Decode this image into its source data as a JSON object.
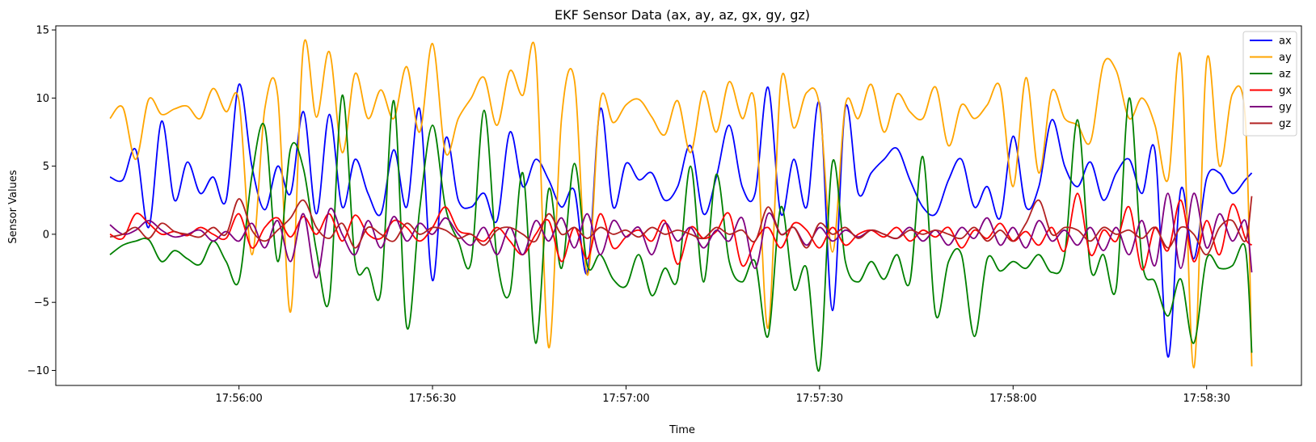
{
  "chart_data": {
    "type": "line",
    "title": "EKF Sensor Data (ax, ay, az, gx, gy, gz)",
    "xlabel": "Time",
    "ylabel": "Sensor Values",
    "x_ticks": [
      "17:56:00",
      "17:56:30",
      "17:57:00",
      "17:57:30",
      "17:58:00",
      "17:58:30"
    ],
    "x_tick_seconds": [
      0,
      30,
      60,
      90,
      120,
      150
    ],
    "xlim_seconds": [
      -28.4,
      164.7
    ],
    "ylim": [
      -11.1,
      15.3
    ],
    "y_ticks": [
      -10,
      -5,
      0,
      5,
      10,
      15
    ],
    "grid": false,
    "legend_position": "top-right",
    "x": [
      -20,
      -18,
      -16,
      -14,
      -12,
      -10,
      -8,
      -6,
      -4,
      -2,
      0,
      2,
      4,
      6,
      8,
      10,
      12,
      14,
      16,
      18,
      20,
      22,
      24,
      26,
      28,
      30,
      32,
      34,
      36,
      38,
      40,
      42,
      44,
      46,
      48,
      50,
      52,
      54,
      56,
      58,
      60,
      62,
      64,
      66,
      68,
      70,
      72,
      74,
      76,
      78,
      80,
      82,
      84,
      86,
      88,
      90,
      92,
      94,
      96,
      98,
      100,
      102,
      104,
      106,
      108,
      110,
      112,
      114,
      116,
      118,
      120,
      122,
      124,
      126,
      128,
      130,
      132,
      134,
      136,
      138,
      140,
      142,
      144,
      146,
      148,
      150,
      152,
      154,
      156,
      157
    ],
    "series": [
      {
        "name": "ax",
        "color": "#0000ff",
        "values": [
          4.2,
          4.0,
          6.2,
          0.5,
          8.3,
          2.5,
          5.3,
          3.0,
          4.2,
          2.5,
          11.0,
          5.0,
          1.8,
          5.0,
          3.0,
          9.0,
          1.5,
          8.8,
          2.0,
          5.5,
          3.0,
          1.5,
          6.2,
          2.0,
          9.2,
          -3.4,
          7.0,
          2.5,
          2.0,
          3.0,
          1.0,
          7.5,
          3.5,
          5.5,
          4.0,
          2.0,
          3.2,
          -2.8,
          9.2,
          2.0,
          5.2,
          4.0,
          4.5,
          2.5,
          3.5,
          6.5,
          1.5,
          4.2,
          8.0,
          3.5,
          3.0,
          10.8,
          1.5,
          5.5,
          2.0,
          9.6,
          -5.6,
          9.3,
          3.0,
          4.5,
          5.5,
          6.3,
          4.0,
          2.0,
          1.5,
          4.0,
          5.5,
          2.0,
          3.5,
          1.2,
          7.2,
          2.0,
          3.5,
          8.4,
          5.0,
          3.5,
          5.3,
          2.5,
          4.5,
          5.5,
          3.0,
          6.1,
          -9.0,
          3.3,
          -1.8,
          4.1,
          4.5,
          3.0,
          4.0,
          4.5
        ]
      },
      {
        "name": "ay",
        "color": "#ffa500",
        "values": [
          8.5,
          9.3,
          5.5,
          9.9,
          8.8,
          9.2,
          9.4,
          8.5,
          10.7,
          9.0,
          9.8,
          -1.5,
          9.2,
          10.2,
          -5.7,
          13.8,
          8.6,
          13.4,
          6.0,
          11.8,
          8.5,
          10.6,
          8.5,
          12.3,
          7.5,
          14.0,
          6.0,
          8.5,
          10.0,
          11.5,
          8.0,
          12.0,
          10.2,
          13.2,
          -8.3,
          8.5,
          11.3,
          -3.0,
          9.8,
          8.2,
          9.5,
          9.9,
          8.6,
          7.3,
          9.8,
          6.0,
          10.5,
          7.5,
          11.2,
          8.5,
          9.5,
          -6.9,
          11.2,
          7.8,
          10.4,
          9.4,
          -1.3,
          9.5,
          8.5,
          11.0,
          7.5,
          10.3,
          9.0,
          8.5,
          10.8,
          6.5,
          9.5,
          8.5,
          9.5,
          10.8,
          3.5,
          11.5,
          4.5,
          10.5,
          8.5,
          8.0,
          6.8,
          12.5,
          12.0,
          8.5,
          10.0,
          8.0,
          4.0,
          13.0,
          -9.8,
          12.7,
          5.0,
          10.3,
          8.5,
          -9.7
        ]
      },
      {
        "name": "az",
        "color": "#008000",
        "values": [
          -1.5,
          -0.8,
          -0.5,
          -0.4,
          -2.0,
          -1.2,
          -1.8,
          -2.2,
          -0.5,
          -2.0,
          -3.4,
          4.3,
          7.9,
          -2.0,
          6.3,
          4.8,
          -1.2,
          -4.8,
          10.2,
          -2.0,
          -2.5,
          -4.2,
          9.8,
          -6.8,
          1.8,
          8.0,
          2.0,
          -0.5,
          -2.0,
          9.1,
          -1.8,
          -4.3,
          4.5,
          -8.0,
          3.3,
          -2.5,
          5.2,
          -2.3,
          -1.5,
          -3.3,
          -3.8,
          -1.5,
          -4.5,
          -2.5,
          -3.3,
          5.0,
          -3.5,
          4.4,
          -2.0,
          -3.5,
          -2.0,
          -7.5,
          2.0,
          -4.0,
          -2.5,
          -9.9,
          5.3,
          -2.0,
          -3.5,
          -2.0,
          -3.3,
          -1.5,
          -3.5,
          5.7,
          -5.9,
          -2.0,
          -1.5,
          -7.5,
          -1.8,
          -2.7,
          -2.0,
          -2.5,
          -1.5,
          -2.8,
          -1.5,
          8.4,
          -2.5,
          -1.5,
          -3.9,
          10.0,
          -2.0,
          -3.5,
          -6.0,
          -3.3,
          -8.0,
          -1.8,
          -2.5,
          -2.3,
          -1.0,
          -8.7
        ]
      },
      {
        "name": "gx",
        "color": "#ff0000",
        "values": [
          0.0,
          -0.3,
          1.5,
          0.8,
          0.0,
          0.2,
          -0.1,
          0.5,
          0.0,
          -0.3,
          1.5,
          -1.0,
          0.5,
          1.2,
          -0.2,
          1.3,
          0.0,
          1.5,
          -0.5,
          1.4,
          0.0,
          -0.3,
          1.0,
          0.5,
          -0.5,
          0.5,
          2.0,
          0.3,
          0.0,
          -0.5,
          0.5,
          -0.5,
          -1.5,
          0.0,
          1.0,
          -2.0,
          0.5,
          -1.8,
          1.5,
          -1.0,
          -0.2,
          0.3,
          -0.5,
          1.0,
          -2.2,
          0.5,
          -0.3,
          0.2,
          1.5,
          -2.3,
          -0.5,
          0.5,
          -1.0,
          0.8,
          0.3,
          -1.0,
          0.5,
          -0.8,
          0.0,
          0.3,
          -0.2,
          0.5,
          -0.5,
          0.3,
          -0.2,
          0.5,
          -1.0,
          0.3,
          -0.3,
          0.8,
          -0.5,
          0.2,
          -0.8,
          0.5,
          -1.2,
          3.0,
          -1.5,
          0.3,
          -0.5,
          2.0,
          -2.6,
          0.5,
          -1.2,
          2.5,
          -2.0,
          1.0,
          -1.5,
          2.2,
          -0.3,
          -0.8
        ]
      },
      {
        "name": "gy",
        "color": "#800080",
        "values": [
          0.7,
          0.0,
          0.3,
          1.0,
          0.3,
          -0.2,
          0.0,
          0.3,
          -0.5,
          0.2,
          -0.5,
          0.8,
          -1.0,
          1.0,
          -2.0,
          1.5,
          -3.2,
          1.8,
          0.0,
          -1.5,
          1.0,
          -1.0,
          1.3,
          -0.5,
          0.8,
          0.0,
          1.2,
          0.0,
          -0.8,
          0.5,
          -1.5,
          0.5,
          -1.5,
          1.0,
          -0.5,
          1.2,
          -1.0,
          1.5,
          -1.5,
          1.0,
          -0.2,
          0.5,
          -1.5,
          0.8,
          -0.5,
          0.5,
          -1.0,
          0.3,
          -0.5,
          1.2,
          -2.5,
          1.5,
          0.0,
          0.5,
          -0.8,
          0.5,
          -0.5,
          0.3,
          -0.2,
          0.3,
          0.0,
          -0.3,
          0.5,
          -0.5,
          0.3,
          -0.8,
          0.5,
          -0.3,
          1.2,
          -0.8,
          0.5,
          -1.0,
          1.0,
          -0.5,
          0.3,
          -0.8,
          0.5,
          -1.2,
          0.5,
          -1.5,
          1.0,
          -2.3,
          3.0,
          -2.5,
          3.0,
          -1.0,
          1.5,
          -0.5,
          1.0,
          -2.8
        ]
      },
      {
        "name": "gz",
        "color": "#b22222",
        "values": [
          -0.2,
          0.0,
          0.5,
          -0.3,
          0.8,
          0.2,
          0.0,
          -0.2,
          0.5,
          0.0,
          2.6,
          0.3,
          -0.5,
          0.3,
          1.2,
          2.5,
          0.5,
          -0.3,
          0.8,
          -1.0,
          0.5,
          0.0,
          -0.5,
          0.8,
          0.0,
          0.5,
          0.3,
          -0.3,
          0.0,
          -0.8,
          0.3,
          0.5,
          0.0,
          -0.5,
          1.5,
          0.0,
          0.5,
          -0.3,
          0.5,
          0.0,
          0.3,
          -0.2,
          0.5,
          0.0,
          0.3,
          0.0,
          -0.3,
          0.5,
          0.0,
          0.3,
          -0.5,
          2.0,
          0.0,
          0.5,
          -1.0,
          0.8,
          0.0,
          0.5,
          -0.3,
          0.3,
          0.0,
          -0.3,
          0.3,
          0.0,
          0.3,
          0.0,
          -0.3,
          0.5,
          -0.5,
          0.3,
          -0.5,
          0.8,
          2.5,
          0.0,
          0.5,
          0.3,
          -0.5,
          0.5,
          0.0,
          0.3,
          -0.3,
          0.5,
          -1.0,
          0.5,
          0.0,
          -1.5,
          0.5,
          1.0,
          -0.5,
          2.8
        ]
      }
    ]
  }
}
